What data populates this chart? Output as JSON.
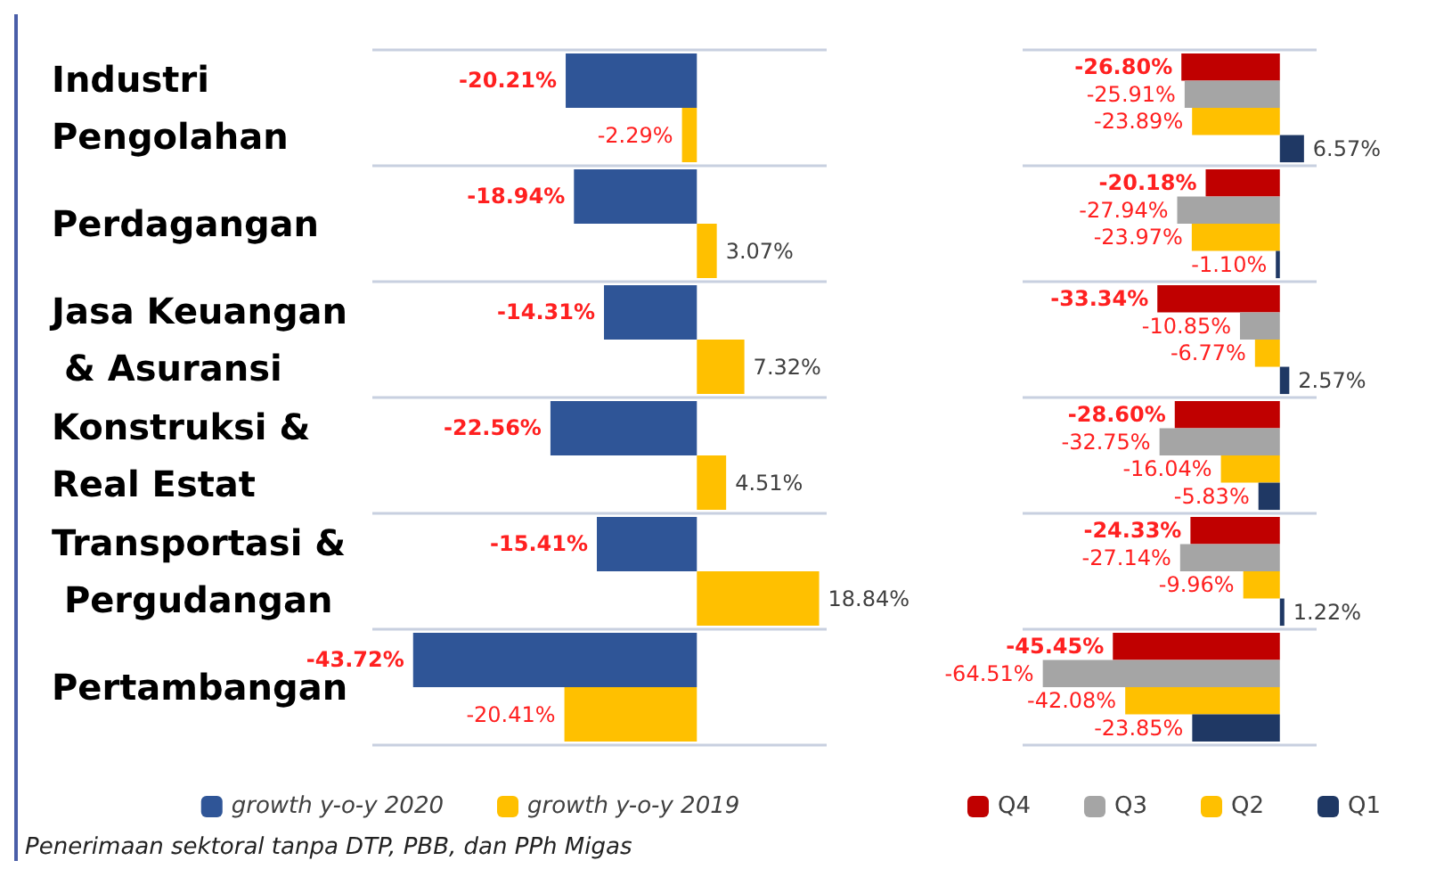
{
  "chart_data": [
    {
      "type": "bar",
      "orientation": "horizontal",
      "categories": [
        "Industri Pengolahan",
        "Perdagangan",
        "Jasa Keuangan & Asuransi",
        "Konstruksi & Real Estat",
        "Transportasi & Pergudangan",
        "Pertambangan"
      ],
      "series": [
        {
          "name": "growth y-o-y 2020",
          "color": "#2f5597",
          "values": [
            -20.21,
            -18.94,
            -14.31,
            -22.56,
            -15.41,
            -43.72
          ],
          "value_labels": [
            "-20.21%",
            "-18.94%",
            "-14.31%",
            "-22.56%",
            "-15.41%",
            "-43.72%"
          ]
        },
        {
          "name": "growth y-o-y 2019",
          "color": "#ffc000",
          "values": [
            -2.29,
            3.07,
            7.32,
            4.51,
            18.84,
            -20.41
          ],
          "value_labels": [
            "-2.29%",
            "3.07%",
            "7.32%",
            "4.51%",
            "18.84%",
            "-20.41%"
          ]
        }
      ],
      "tick_labels": "y",
      "grid": "y",
      "legend": "bottom",
      "annotations": [
        "Penerimaan sektoral tanpa DTP, PBB, dan PPh Migas"
      ]
    },
    {
      "type": "bar",
      "orientation": "horizontal",
      "categories": [
        "Industri Pengolahan",
        "Perdagangan",
        "Jasa Keuangan & Asuransi",
        "Konstruksi & Real Estat",
        "Transportasi & Pergudangan",
        "Pertambangan"
      ],
      "series": [
        {
          "name": "Q4",
          "color": "#c00000",
          "values": [
            -26.8,
            -20.18,
            -33.34,
            -28.6,
            -24.33,
            -45.45
          ],
          "value_labels": [
            "-26.80%",
            "-20.18%",
            "-33.34%",
            "-28.60%",
            "-24.33%",
            "-45.45%"
          ]
        },
        {
          "name": "Q3",
          "color": "#a5a5a5",
          "values": [
            -25.91,
            -27.94,
            -10.85,
            -32.75,
            -27.14,
            -64.51
          ],
          "value_labels": [
            "-25.91%",
            "-27.94%",
            "-10.85%",
            "-32.75%",
            "-27.14%",
            "-64.51%"
          ]
        },
        {
          "name": "Q2",
          "color": "#ffc000",
          "values": [
            -23.89,
            -23.97,
            -6.77,
            -16.04,
            -9.96,
            -42.08
          ],
          "value_labels": [
            "-23.89%",
            "-23.97%",
            "-6.77%",
            "-16.04%",
            "-9.96%",
            "-42.08%"
          ]
        },
        {
          "name": "Q1",
          "color": "#1f3864",
          "values": [
            6.57,
            -1.1,
            2.57,
            -5.83,
            1.22,
            -23.85
          ],
          "value_labels": [
            "6.57%",
            "-1.10%",
            "2.57%",
            "-5.83%",
            "1.22%",
            "-23.85%"
          ]
        }
      ],
      "tick_labels": false,
      "grid": "y",
      "legend": "bottom"
    }
  ]
}
